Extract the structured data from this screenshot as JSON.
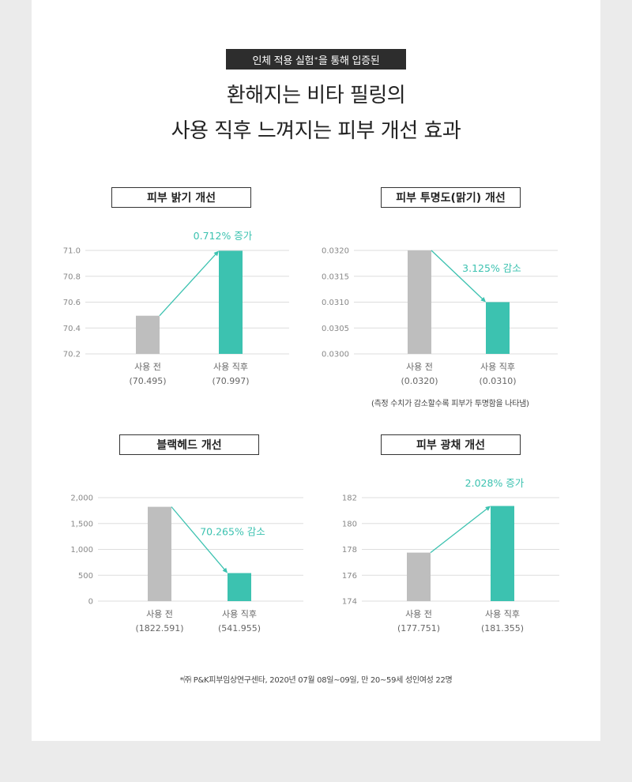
{
  "header": {
    "badge_text": "인체 적용 실험",
    "badge_sup": "*",
    "badge_suffix": "을 통해 입증된",
    "headline_line1": "환해지는 비타 필링의",
    "headline_line2": "사용 직후 느껴지는 피부 개선 효과"
  },
  "colors": {
    "before": "#bebebe",
    "after": "#3cc2b0",
    "arrow": "#3cc2b0",
    "grid": "#dddddd",
    "text": "#666666"
  },
  "chart_data": [
    {
      "type": "bar",
      "title": "피부 밝기 개선",
      "categories": [
        "사용 전",
        "사용 직후"
      ],
      "value_labels": [
        "(70.495)",
        "(70.997)"
      ],
      "values": [
        70.495,
        70.997
      ],
      "ylim": [
        70.2,
        71.0
      ],
      "yticks": [
        "70.2",
        "70.4",
        "70.6",
        "70.8",
        "71.0"
      ],
      "ytick_values": [
        70.2,
        70.4,
        70.6,
        70.8,
        71.0
      ],
      "annotation": "0.712% 증가",
      "direction": "up"
    },
    {
      "type": "bar",
      "title": "피부 투명도(맑기) 개선",
      "categories": [
        "사용 전",
        "사용 직후"
      ],
      "value_labels": [
        "(0.0320)",
        "(0.0310)"
      ],
      "values": [
        0.032,
        0.031
      ],
      "ylim": [
        0.03,
        0.032
      ],
      "yticks": [
        "0.0300",
        "0.0305",
        "0.0310",
        "0.0315",
        "0.0320"
      ],
      "ytick_values": [
        0.03,
        0.0305,
        0.031,
        0.0315,
        0.032
      ],
      "annotation": "3.125% 감소",
      "direction": "down",
      "note": "(측정 수치가 감소할수록 피부가 투명함을 나타냄)"
    },
    {
      "type": "bar",
      "title": "블랙헤드 개선",
      "categories": [
        "사용 전",
        "사용 직후"
      ],
      "value_labels": [
        "(1822.591)",
        "(541.955)"
      ],
      "values": [
        1822.591,
        541.955
      ],
      "ylim": [
        0,
        2000
      ],
      "yticks": [
        "0",
        "500",
        "1,000",
        "1,500",
        "2,000"
      ],
      "ytick_values": [
        0,
        500,
        1000,
        1500,
        2000
      ],
      "annotation": "70.265% 감소",
      "direction": "down"
    },
    {
      "type": "bar",
      "title": "피부 광채 개선",
      "categories": [
        "사용 전",
        "사용 직후"
      ],
      "value_labels": [
        "(177.751)",
        "(181.355)"
      ],
      "values": [
        177.751,
        181.355
      ],
      "ylim": [
        174,
        182
      ],
      "yticks": [
        "174",
        "176",
        "178",
        "180",
        "182"
      ],
      "ytick_values": [
        174,
        176,
        178,
        180,
        182
      ],
      "annotation": "2.028% 증가",
      "direction": "up"
    }
  ],
  "footnote": "*㈜ P&K피부임상연구센타,  2020년 07월 08일~09일, 만 20~59세 성인여성 22명"
}
